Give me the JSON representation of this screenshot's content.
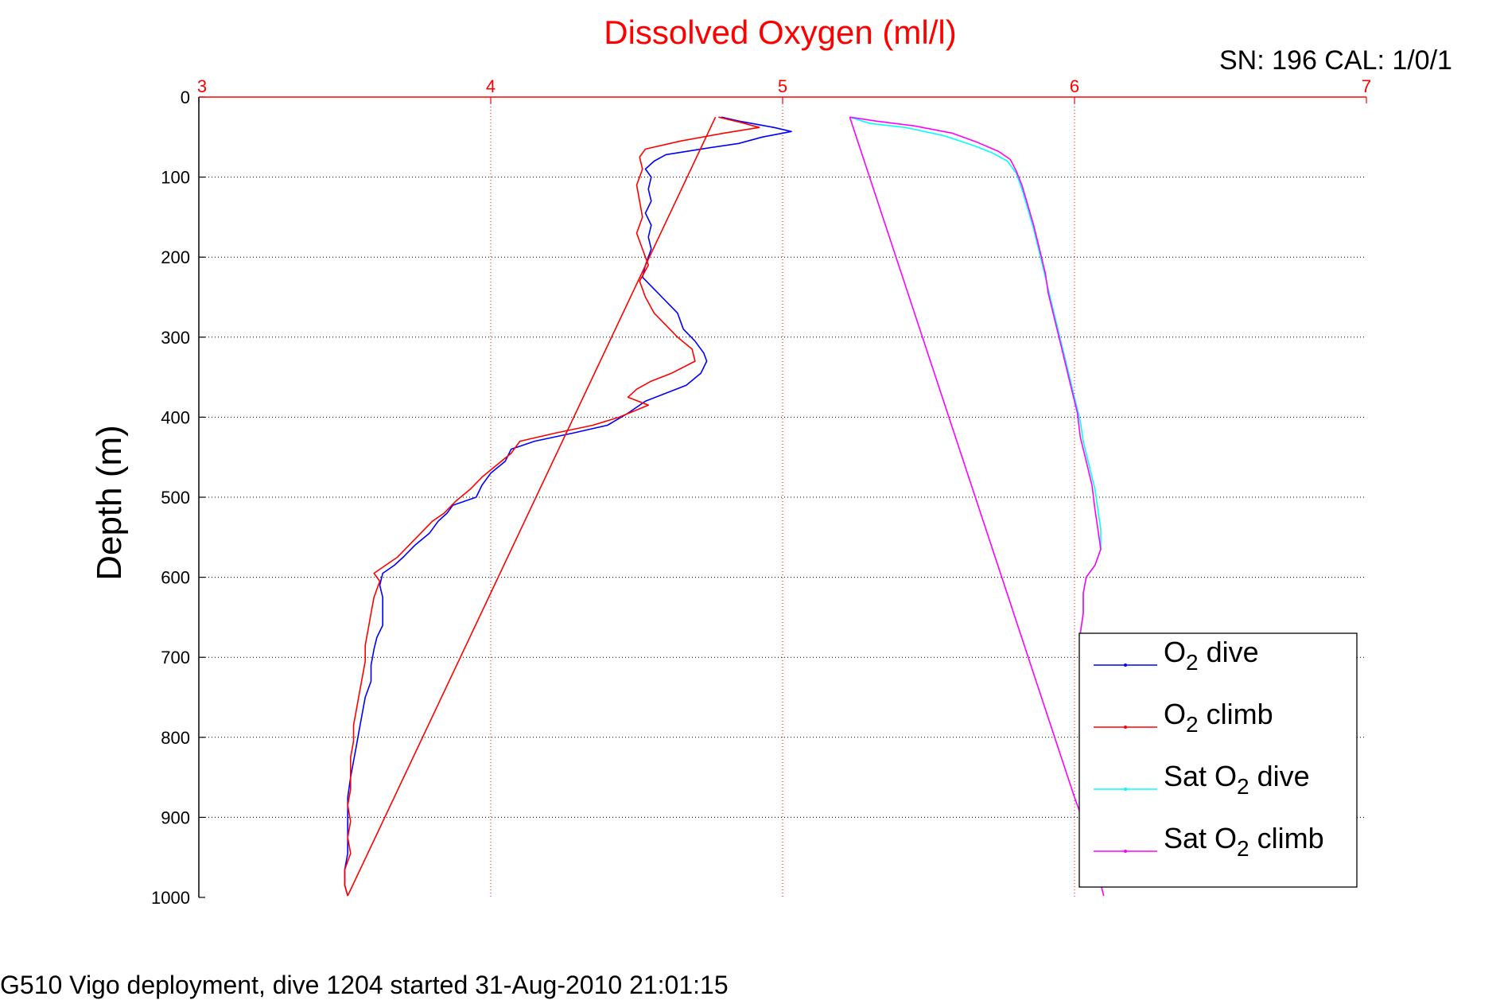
{
  "chart_data": {
    "type": "line",
    "title": "Dissolved Oxygen (ml/l)",
    "title_color": "#ff0000",
    "corner_note": "SN: 196  CAL: 1/0/1",
    "caption": "G510 Vigo deployment, dive 1204 started 31-Aug-2010 21:01:15",
    "xlabel": "",
    "ylabel": "Depth (m)",
    "x_axis_position": "top",
    "y_reversed": true,
    "xlim": [
      3,
      7
    ],
    "ylim": [
      0,
      1000
    ],
    "xticks": [
      "3",
      "4",
      "5",
      "6",
      "7"
    ],
    "yticks": [
      "0",
      "100",
      "200",
      "300",
      "400",
      "500",
      "600",
      "700",
      "800",
      "900",
      "1000"
    ],
    "x_tick_color": "#ff0000",
    "grid": true,
    "legend_position": "lower-right",
    "series": [
      {
        "name_main": "O",
        "name_sub": "2",
        "name_suffix": " dive",
        "color": "#0000ff",
        "points": [
          [
            4.79,
            25
          ],
          [
            4.85,
            30
          ],
          [
            4.97,
            38
          ],
          [
            5.03,
            43
          ],
          [
            4.93,
            50
          ],
          [
            4.85,
            58
          ],
          [
            4.72,
            65
          ],
          [
            4.6,
            72
          ],
          [
            4.56,
            80
          ],
          [
            4.53,
            90
          ],
          [
            4.55,
            100
          ],
          [
            4.54,
            115
          ],
          [
            4.55,
            130
          ],
          [
            4.53,
            145
          ],
          [
            4.55,
            160
          ],
          [
            4.54,
            175
          ],
          [
            4.55,
            190
          ],
          [
            4.53,
            210
          ],
          [
            4.52,
            225
          ],
          [
            4.56,
            240
          ],
          [
            4.6,
            255
          ],
          [
            4.64,
            270
          ],
          [
            4.66,
            290
          ],
          [
            4.7,
            305
          ],
          [
            4.73,
            320
          ],
          [
            4.74,
            330
          ],
          [
            4.72,
            345
          ],
          [
            4.67,
            360
          ],
          [
            4.6,
            370
          ],
          [
            4.53,
            380
          ],
          [
            4.47,
            395
          ],
          [
            4.4,
            410
          ],
          [
            4.28,
            420
          ],
          [
            4.15,
            430
          ],
          [
            4.07,
            440
          ],
          [
            4.05,
            455
          ],
          [
            4.0,
            470
          ],
          [
            3.97,
            485
          ],
          [
            3.95,
            500
          ],
          [
            3.87,
            510
          ],
          [
            3.85,
            520
          ],
          [
            3.82,
            530
          ],
          [
            3.79,
            545
          ],
          [
            3.74,
            560
          ],
          [
            3.7,
            575
          ],
          [
            3.67,
            585
          ],
          [
            3.63,
            595
          ],
          [
            3.62,
            610
          ],
          [
            3.63,
            625
          ],
          [
            3.63,
            640
          ],
          [
            3.63,
            660
          ],
          [
            3.61,
            675
          ],
          [
            3.6,
            690
          ],
          [
            3.59,
            710
          ],
          [
            3.59,
            730
          ],
          [
            3.57,
            750
          ],
          [
            3.56,
            770
          ],
          [
            3.55,
            790
          ],
          [
            3.54,
            810
          ],
          [
            3.53,
            830
          ],
          [
            3.52,
            850
          ],
          [
            3.51,
            875
          ],
          [
            3.51,
            900
          ],
          [
            3.51,
            920
          ],
          [
            3.51,
            945
          ],
          [
            3.5,
            965
          ],
          [
            3.5,
            985
          ],
          [
            3.51,
            998
          ]
        ]
      },
      {
        "name_main": "O",
        "name_sub": "2",
        "name_suffix": " climb",
        "color": "#ff0000",
        "points": [
          [
            4.78,
            25
          ],
          [
            4.86,
            32
          ],
          [
            4.92,
            38
          ],
          [
            4.8,
            45
          ],
          [
            4.65,
            55
          ],
          [
            4.53,
            65
          ],
          [
            4.51,
            75
          ],
          [
            4.52,
            90
          ],
          [
            4.5,
            110
          ],
          [
            4.51,
            130
          ],
          [
            4.52,
            150
          ],
          [
            4.5,
            170
          ],
          [
            4.52,
            190
          ],
          [
            4.54,
            210
          ],
          [
            4.51,
            230
          ],
          [
            4.53,
            250
          ],
          [
            4.56,
            270
          ],
          [
            4.6,
            285
          ],
          [
            4.64,
            300
          ],
          [
            4.69,
            315
          ],
          [
            4.7,
            330
          ],
          [
            4.62,
            345
          ],
          [
            4.55,
            355
          ],
          [
            4.5,
            365
          ],
          [
            4.47,
            375
          ],
          [
            4.54,
            385
          ],
          [
            4.44,
            400
          ],
          [
            4.35,
            410
          ],
          [
            4.22,
            420
          ],
          [
            4.1,
            430
          ],
          [
            4.07,
            445
          ],
          [
            4.02,
            460
          ],
          [
            3.97,
            475
          ],
          [
            3.93,
            490
          ],
          [
            3.88,
            505
          ],
          [
            3.84,
            520
          ],
          [
            3.8,
            530
          ],
          [
            3.76,
            545
          ],
          [
            3.72,
            560
          ],
          [
            3.68,
            575
          ],
          [
            3.64,
            585
          ],
          [
            3.6,
            595
          ],
          [
            3.62,
            605
          ],
          [
            3.6,
            625
          ],
          [
            3.59,
            645
          ],
          [
            3.58,
            665
          ],
          [
            3.57,
            685
          ],
          [
            3.57,
            705
          ],
          [
            3.56,
            725
          ],
          [
            3.55,
            745
          ],
          [
            3.54,
            765
          ],
          [
            3.53,
            785
          ],
          [
            3.53,
            805
          ],
          [
            3.52,
            825
          ],
          [
            3.52,
            845
          ],
          [
            3.52,
            865
          ],
          [
            3.51,
            885
          ],
          [
            3.52,
            905
          ],
          [
            3.51,
            925
          ],
          [
            3.52,
            945
          ],
          [
            3.5,
            965
          ],
          [
            3.5,
            985
          ],
          [
            3.51,
            998
          ]
        ]
      },
      {
        "name_main": "Sat O",
        "name_sub": "2",
        "name_suffix": " dive",
        "color": "#00ffff",
        "points": [
          [
            5.23,
            25
          ],
          [
            5.3,
            33
          ],
          [
            5.42,
            38
          ],
          [
            5.55,
            48
          ],
          [
            5.65,
            60
          ],
          [
            5.72,
            70
          ],
          [
            5.77,
            80
          ],
          [
            5.8,
            95
          ],
          [
            5.82,
            115
          ],
          [
            5.84,
            140
          ],
          [
            5.86,
            165
          ],
          [
            5.88,
            195
          ],
          [
            5.9,
            225
          ],
          [
            5.92,
            255
          ],
          [
            5.94,
            285
          ],
          [
            5.96,
            315
          ],
          [
            5.98,
            345
          ],
          [
            6.0,
            375
          ],
          [
            6.02,
            405
          ],
          [
            6.03,
            430
          ],
          [
            6.05,
            460
          ],
          [
            6.07,
            490
          ],
          [
            6.08,
            515
          ],
          [
            6.09,
            540
          ],
          [
            6.09,
            565
          ],
          [
            6.07,
            585
          ],
          [
            6.04,
            600
          ],
          [
            6.03,
            620
          ],
          [
            6.03,
            645
          ],
          [
            6.02,
            670
          ],
          [
            6.02,
            690
          ],
          [
            6.02,
            700
          ]
        ]
      },
      {
        "name_main": "Sat O",
        "name_sub": "2",
        "name_suffix": " climb",
        "color": "#ff00ff",
        "points": [
          [
            5.23,
            25
          ],
          [
            5.32,
            30
          ],
          [
            5.45,
            36
          ],
          [
            5.58,
            45
          ],
          [
            5.67,
            57
          ],
          [
            5.74,
            68
          ],
          [
            5.78,
            78
          ],
          [
            5.8,
            92
          ],
          [
            5.82,
            110
          ],
          [
            5.84,
            135
          ],
          [
            5.86,
            160
          ],
          [
            5.88,
            190
          ],
          [
            5.9,
            220
          ],
          [
            5.91,
            245
          ],
          [
            5.93,
            275
          ],
          [
            5.95,
            305
          ],
          [
            5.97,
            335
          ],
          [
            5.99,
            365
          ],
          [
            6.01,
            395
          ],
          [
            6.02,
            425
          ],
          [
            6.04,
            455
          ],
          [
            6.06,
            485
          ],
          [
            6.07,
            515
          ],
          [
            6.08,
            540
          ],
          [
            6.09,
            565
          ],
          [
            6.07,
            585
          ],
          [
            6.04,
            600
          ],
          [
            6.03,
            620
          ],
          [
            6.03,
            645
          ],
          [
            6.02,
            670
          ],
          [
            6.02,
            690
          ],
          [
            6.02,
            700
          ]
        ]
      },
      {
        "name": "",
        "color": "#ff0000",
        "in_legend": false,
        "points": [
          [
            4.77,
            25
          ],
          [
            3.51,
            998
          ]
        ]
      },
      {
        "name": "",
        "color": "#ff00ff",
        "in_legend": false,
        "points": [
          [
            5.23,
            25
          ],
          [
            6.0,
            875
          ],
          [
            6.05,
            925
          ],
          [
            6.1,
            998
          ]
        ]
      }
    ]
  }
}
